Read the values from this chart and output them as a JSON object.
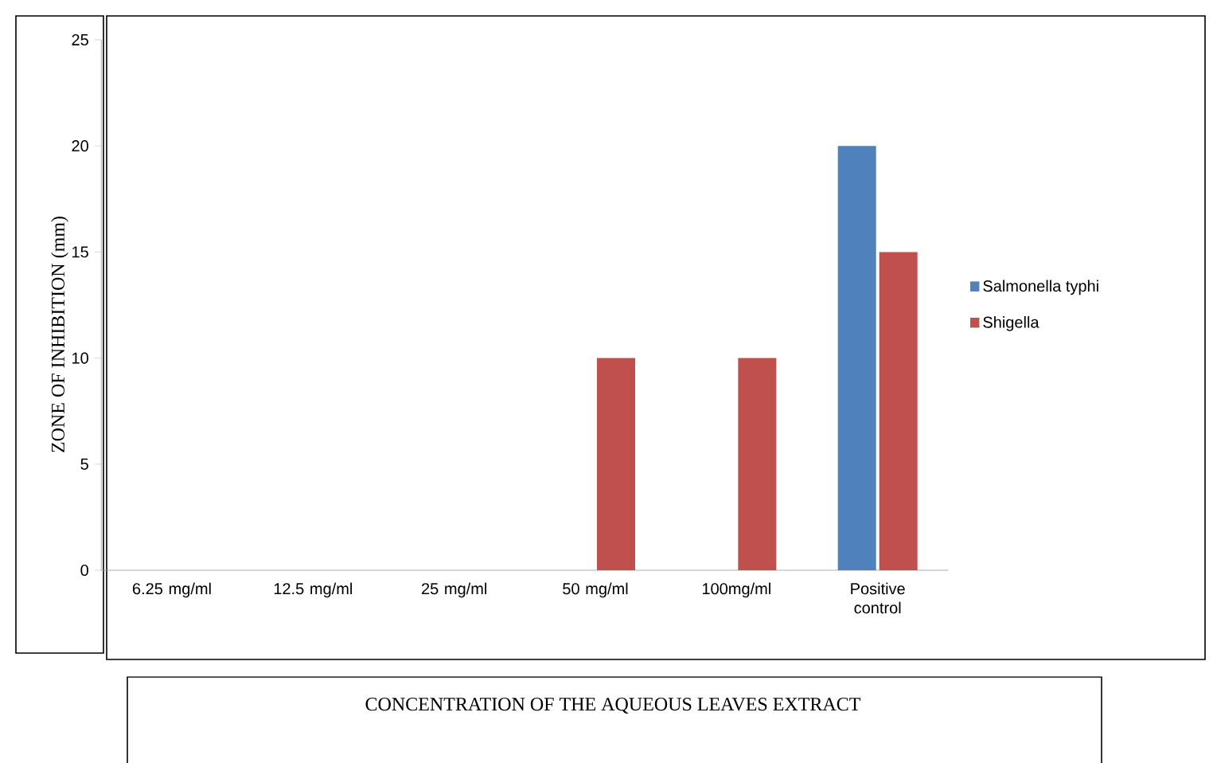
{
  "chart_data": {
    "type": "bar",
    "xlabel": "CONCENTRATION OF THE AQUEOUS LEAVES EXTRACT",
    "ylabel": "ZONE OF INHIBITION (mm)",
    "categories": [
      "6.25 mg/ml",
      "12.5 mg/ml",
      "25 mg/ml",
      "50 mg/ml",
      "100mg/ml",
      "Positive control"
    ],
    "series": [
      {
        "name": "Salmonella typhi",
        "color": "#4f81bd",
        "values": [
          0,
          0,
          0,
          0,
          0,
          20
        ]
      },
      {
        "name": "Shigella",
        "color": "#c0504d",
        "values": [
          0,
          0,
          0,
          10,
          10,
          15
        ]
      }
    ],
    "ylim": [
      0,
      25
    ],
    "yticks": [
      0,
      5,
      10,
      15,
      20,
      25
    ],
    "grid": false,
    "legend": "right"
  }
}
